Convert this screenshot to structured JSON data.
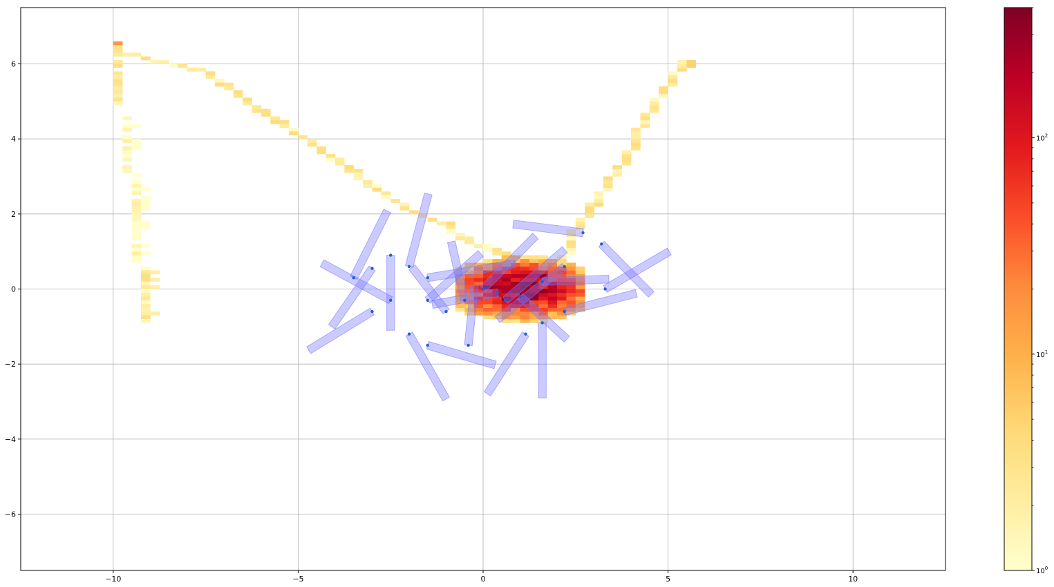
{
  "chart_data": {
    "type": "heatmap",
    "title": "",
    "xlabel": "",
    "ylabel": "",
    "xlim": [
      -12.5,
      12.5
    ],
    "ylim": [
      -7.5,
      7.5
    ],
    "grid": true,
    "x_ticks": [
      -10,
      -5,
      0,
      5,
      10
    ],
    "y_ticks": [
      -6,
      -4,
      -2,
      0,
      2,
      4,
      6
    ],
    "x_tick_labels": [
      "−10",
      "−5",
      "0",
      "5",
      "10"
    ],
    "y_tick_labels": [
      "−6",
      "−4",
      "−2",
      "0",
      "2",
      "4",
      "6"
    ],
    "colorbar": {
      "scale": "log",
      "colormap": "YlOrRd",
      "range": [
        1,
        400
      ],
      "ticks": [
        {
          "value": 1,
          "base": "10",
          "exp": "0"
        },
        {
          "value": 10,
          "base": "10",
          "exp": "1"
        },
        {
          "value": 100,
          "base": "10",
          "exp": "2"
        }
      ],
      "colors": [
        "#ffffcc",
        "#ffeda0",
        "#fed976",
        "#feb24c",
        "#fd8d3c",
        "#fc4e2a",
        "#e31a1c",
        "#bd0026",
        "#800026"
      ]
    },
    "histogram_paths": [
      {
        "name": "left-vertical-upper",
        "points": [
          [
            -10.0,
            6.6
          ],
          [
            -10.0,
            4.9
          ]
        ],
        "value": 2
      },
      {
        "name": "left-vertical-middle",
        "points": [
          [
            -9.6,
            4.6
          ],
          [
            -9.6,
            3.1
          ]
        ],
        "value": 1
      },
      {
        "name": "left-vertical-lower",
        "points": [
          [
            -9.35,
            3.0
          ],
          [
            -9.35,
            0.7
          ]
        ],
        "value": 1
      },
      {
        "name": "left-vertical-bottom",
        "points": [
          [
            -9.1,
            0.5
          ],
          [
            -9.1,
            -0.85
          ]
        ],
        "value": 2
      },
      {
        "name": "top-left-diagonal",
        "points": [
          [
            -10.0,
            6.4
          ],
          [
            -9.0,
            6.1
          ],
          [
            -7.5,
            5.8
          ],
          [
            -6.5,
            5.1
          ],
          [
            -5.5,
            4.4
          ],
          [
            -4.5,
            3.8
          ],
          [
            -3.5,
            3.1
          ],
          [
            -2.5,
            2.4
          ],
          [
            -1.8,
            2.0
          ],
          [
            -1.0,
            1.7
          ],
          [
            -0.4,
            1.3
          ],
          [
            0.3,
            1.0
          ],
          [
            1.0,
            0.8
          ]
        ],
        "value": 2
      },
      {
        "name": "right-diagonal",
        "points": [
          [
            2.2,
            0.8
          ],
          [
            2.5,
            1.6
          ],
          [
            3.0,
            2.3
          ],
          [
            3.5,
            3.0
          ],
          [
            4.0,
            3.7
          ],
          [
            4.4,
            4.6
          ],
          [
            4.9,
            5.3
          ],
          [
            5.4,
            6.0
          ]
        ],
        "value": 2
      },
      {
        "name": "right-top-spot",
        "points": [
          [
            5.5,
            6.0
          ],
          [
            5.5,
            5.9
          ]
        ],
        "value": 5
      },
      {
        "name": "left-top-spot",
        "points": [
          [
            -10.0,
            6.6
          ],
          [
            -10.0,
            6.5
          ]
        ],
        "value": 10
      }
    ],
    "histogram_core": {
      "center": [
        1.0,
        0.0
      ],
      "spread": [
        1.2,
        0.5
      ],
      "peak_value": 350,
      "peak_cells": [
        [
          0.15,
          0.05
        ],
        [
          1.1,
          0.05
        ],
        [
          1.6,
          0.35
        ],
        [
          0.7,
          -0.3
        ],
        [
          1.3,
          -0.2
        ]
      ]
    },
    "rectangles": [
      {
        "anchor": [
          -3.5,
          0.3
        ],
        "angle_deg": 63,
        "length": 2.0
      },
      {
        "anchor": [
          -3.0,
          0.55
        ],
        "angle_deg": 235,
        "length": 1.9
      },
      {
        "anchor": [
          -2.5,
          -0.3
        ],
        "angle_deg": 152,
        "length": 2.1
      },
      {
        "anchor": [
          -2.5,
          0.9
        ],
        "angle_deg": 270,
        "length": 2.0
      },
      {
        "anchor": [
          -3.0,
          -0.6
        ],
        "angle_deg": 211,
        "length": 2.0
      },
      {
        "anchor": [
          -2.0,
          0.6
        ],
        "angle_deg": 75,
        "length": 2.0
      },
      {
        "anchor": [
          -2.0,
          -1.2
        ],
        "angle_deg": 300,
        "length": 2.0
      },
      {
        "anchor": [
          -1.5,
          -0.3
        ],
        "angle_deg": 41,
        "length": 1.9
      },
      {
        "anchor": [
          -1.5,
          0.3
        ],
        "angle_deg": 9,
        "length": 2.4
      },
      {
        "anchor": [
          -1.5,
          -1.5
        ],
        "angle_deg": 344,
        "length": 1.9
      },
      {
        "anchor": [
          -1.0,
          -0.6
        ],
        "angle_deg": 128,
        "length": 1.5
      },
      {
        "anchor": [
          -0.5,
          -0.3
        ],
        "angle_deg": 103,
        "length": 1.6
      },
      {
        "anchor": [
          -0.4,
          -1.5
        ],
        "angle_deg": 84,
        "length": 1.6
      },
      {
        "anchor": [
          0.0,
          0.0
        ],
        "angle_deg": 45,
        "length": 2.0
      },
      {
        "anchor": [
          0.6,
          -0.3
        ],
        "angle_deg": 40,
        "length": 2.1
      },
      {
        "anchor": [
          1.15,
          -1.2
        ],
        "angle_deg": 237,
        "length": 1.9
      },
      {
        "anchor": [
          1.6,
          -0.9
        ],
        "angle_deg": 270,
        "length": 2.0
      },
      {
        "anchor": [
          2.2,
          0.6
        ],
        "angle_deg": 218,
        "length": 2.3
      },
      {
        "anchor": [
          2.2,
          -0.6
        ],
        "angle_deg": 14,
        "length": 2.0
      },
      {
        "anchor": [
          2.7,
          1.5
        ],
        "angle_deg": 173,
        "length": 1.9
      },
      {
        "anchor": [
          3.3,
          0.0
        ],
        "angle_deg": 30,
        "length": 2.0
      },
      {
        "anchor": [
          3.2,
          1.2
        ],
        "angle_deg": 315,
        "length": 1.9
      },
      {
        "anchor": [
          1.6,
          0.2
        ],
        "angle_deg": 2,
        "length": 1.8
      },
      {
        "anchor": [
          1.0,
          -0.2
        ],
        "angle_deg": 318,
        "length": 1.7
      },
      {
        "anchor": [
          0.4,
          -0.1
        ],
        "angle_deg": 190,
        "length": 1.8
      }
    ]
  },
  "style": {
    "rect_fill": "#7777ff",
    "rect_opacity": 0.38,
    "anchor_dot": "#1f5fd6",
    "grid_color": "#b0b0b0"
  }
}
